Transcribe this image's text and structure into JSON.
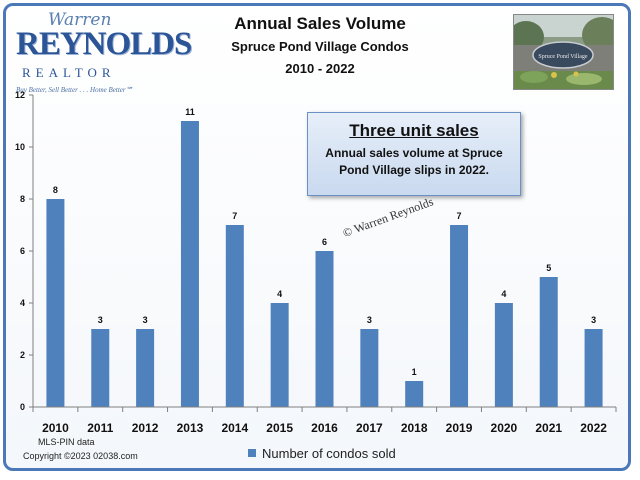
{
  "logo": {
    "script": "Warren",
    "name": "REYNOLDS",
    "realtor": "REALTOR",
    "tagline": "Buy Better, Sell Better . . . Home Better℠",
    "alt": "Warren Reynolds Realtor logo"
  },
  "photo": {
    "sign_text": "Spruce Pond Village"
  },
  "callout": {
    "heading": "Three unit sales",
    "body": "Annual sales volume at Spruce Pond Village slips in 2022."
  },
  "watermark": "© Warren Reynolds",
  "source": "MLS-PIN data",
  "copyright": "Copyright ©2023  02038.com",
  "colors": {
    "bar": "#4f81bd",
    "frame": "#4a78b8",
    "axis": "#7f7f7f"
  },
  "chart_data": {
    "type": "bar",
    "title": "Annual Sales Volume",
    "subtitle": "Spruce Pond Village Condos",
    "subtitle2": "2010 - 2022",
    "categories": [
      "2010",
      "2011",
      "2012",
      "2013",
      "2014",
      "2015",
      "2016",
      "2017",
      "2018",
      "2019",
      "2020",
      "2021",
      "2022"
    ],
    "series": [
      {
        "name": "Number of condos sold",
        "values": [
          8,
          3,
          3,
          11,
          7,
          4,
          6,
          3,
          1,
          7,
          4,
          5,
          3
        ]
      }
    ],
    "ylim": [
      0,
      12
    ],
    "yticks": [
      0,
      2,
      4,
      6,
      8,
      10,
      12
    ],
    "grid": false,
    "legend": "bottom",
    "data_labels": true
  }
}
